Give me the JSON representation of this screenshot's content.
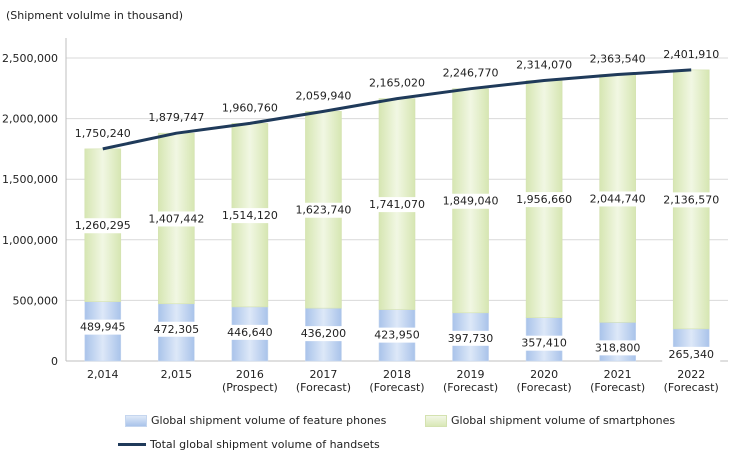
{
  "unit_label": "(Shipment volulme in thousand)",
  "colors": {
    "feature": "#b8cdee",
    "smart": "#e3eecb",
    "total_line": "#1f3a5a",
    "gridline": "#d9d9d9"
  },
  "chart_data": {
    "type": "bar",
    "stacked": true,
    "categories": [
      [
        "2,014"
      ],
      [
        "2,015"
      ],
      [
        "2016",
        "(Prospect)"
      ],
      [
        "2017",
        "(Forecast)"
      ],
      [
        "2018",
        "(Forecast)"
      ],
      [
        "2019",
        "(Forecast)"
      ],
      [
        "2020",
        "(Forecast)"
      ],
      [
        "2021",
        "(Forecast)"
      ],
      [
        "2022",
        "(Forecast)"
      ]
    ],
    "series": [
      {
        "name": "Global shipment volume of feature phones",
        "type": "bar",
        "values": [
          489945,
          472305,
          446640,
          436200,
          423950,
          397730,
          357410,
          318800,
          265340
        ],
        "labels": [
          "489,945",
          "472,305",
          "446,640",
          "436,200",
          "423,950",
          "397,730",
          "357,410",
          "318,800",
          "265,340"
        ]
      },
      {
        "name": "Global shipment volume of smartphones",
        "type": "bar",
        "values": [
          1260295,
          1407442,
          1514120,
          1623740,
          1741070,
          1849040,
          1956660,
          2044740,
          2136570
        ],
        "labels": [
          "1,260,295",
          "1,407,442",
          "1,514,120",
          "1,623,740",
          "1,741,070",
          "1,849,040",
          "1,956,660",
          "2,044,740",
          "2,136,570"
        ]
      },
      {
        "name": "Total global shipment volume of handsets",
        "type": "line",
        "values": [
          1750240,
          1879747,
          1960760,
          2059940,
          2165020,
          2246770,
          2314070,
          2363540,
          2401910
        ],
        "labels": [
          "1,750,240",
          "1,879,747",
          "1,960,760",
          "2,059,940",
          "2,165,020",
          "2,246,770",
          "2,314,070",
          "2,363,540",
          "2,401,910"
        ]
      }
    ],
    "y_ticks": [
      0,
      500000,
      1000000,
      1500000,
      2000000,
      2500000
    ],
    "y_tick_labels": [
      "0",
      "500,000",
      "1,000,000",
      "1,500,000",
      "2,000,000",
      "2,500,000"
    ],
    "ylim": [
      0,
      2500000
    ],
    "grid": true,
    "legend_position": "bottom"
  }
}
